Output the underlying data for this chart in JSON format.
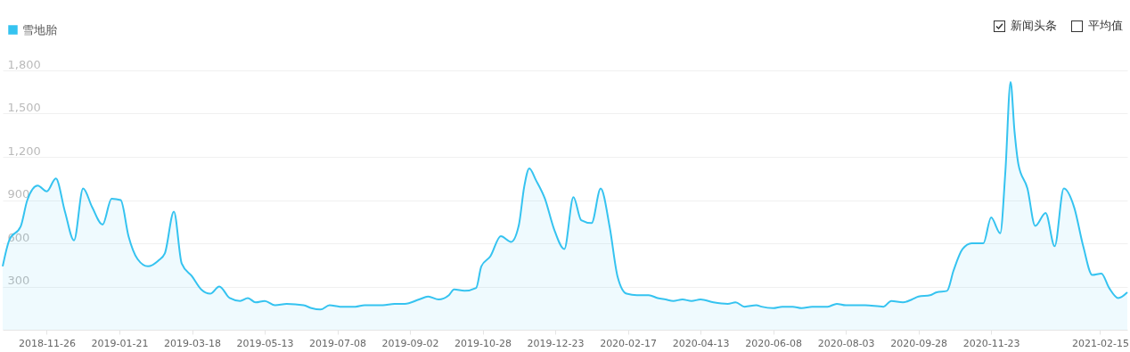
{
  "chart_data": {
    "type": "area",
    "legend": "top left",
    "grid": "y",
    "marker": "none",
    "line_style": "solid",
    "annotations": [
      "新闻头条",
      "平均值"
    ],
    "xlim": [
      "2018-10-23",
      "2021-03-08"
    ],
    "xticks": [
      "2018-11-26",
      "2019-01-21",
      "2019-03-18",
      "2019-05-13",
      "2019-07-08",
      "2019-09-02",
      "2019-10-28",
      "2019-12-23",
      "2020-02-17",
      "2020-04-13",
      "2020-06-08",
      "2020-08-03",
      "2020-09-28",
      "2020-11-23",
      "2021-02-15"
    ],
    "ylim": [
      0,
      1800
    ],
    "yticks": [
      {
        "value": 300,
        "label": "300"
      },
      {
        "value": 600,
        "label": "600"
      },
      {
        "value": 900,
        "label": "900"
      },
      {
        "value": 1200,
        "label": "1,200"
      },
      {
        "value": 1500,
        "label": "1,500"
      },
      {
        "value": 1800,
        "label": "1,800"
      }
    ],
    "series": [
      {
        "name": "雪地胎",
        "color": "#35c3f0",
        "x": [
          "2018-10-23",
          "2018-10-28",
          "2018-11-06",
          "2018-11-11",
          "2018-11-19",
          "2018-11-26",
          "2018-12-03",
          "2018-12-10",
          "2018-12-17",
          "2018-12-24",
          "2018-12-31",
          "2019-01-08",
          "2019-01-15",
          "2019-01-22",
          "2019-01-28",
          "2019-02-04",
          "2019-02-12",
          "2019-02-20",
          "2019-02-25",
          "2019-03-04",
          "2019-03-10",
          "2019-03-18",
          "2019-03-25",
          "2019-04-01",
          "2019-04-08",
          "2019-04-16",
          "2019-04-24",
          "2019-04-30",
          "2019-05-06",
          "2019-05-13",
          "2019-05-21",
          "2019-05-30",
          "2019-06-12",
          "2019-06-18",
          "2019-06-25",
          "2019-07-02",
          "2019-07-10",
          "2019-07-22",
          "2019-07-29",
          "2019-08-12",
          "2019-08-21",
          "2019-08-29",
          "2019-09-09",
          "2019-09-16",
          "2019-09-24",
          "2019-10-02",
          "2019-10-06",
          "2019-10-14",
          "2019-10-23",
          "2019-10-27",
          "2019-11-03",
          "2019-11-11",
          "2019-11-19",
          "2019-11-25",
          "2019-11-29",
          "2019-12-03",
          "2019-12-08",
          "2019-12-15",
          "2019-12-22",
          "2019-12-30",
          "2020-01-06",
          "2020-01-12",
          "2020-01-20",
          "2020-01-27",
          "2020-02-03",
          "2020-02-09",
          "2020-02-16",
          "2020-02-24",
          "2020-03-04",
          "2020-03-11",
          "2020-03-17",
          "2020-03-23",
          "2020-03-30",
          "2020-04-06",
          "2020-04-13",
          "2020-04-23",
          "2020-05-04",
          "2020-05-10",
          "2020-05-17",
          "2020-05-26",
          "2020-05-30",
          "2020-06-08",
          "2020-06-15",
          "2020-06-23",
          "2020-06-30",
          "2020-07-08",
          "2020-07-20",
          "2020-07-27",
          "2020-08-03",
          "2020-08-18",
          "2020-09-01",
          "2020-09-07",
          "2020-09-16",
          "2020-09-23",
          "2020-09-28",
          "2020-10-07",
          "2020-10-12",
          "2020-10-20",
          "2020-10-25",
          "2020-11-01",
          "2020-11-08",
          "2020-11-17",
          "2020-11-23",
          "2020-11-30",
          "2020-12-04",
          "2020-12-08",
          "2020-12-11",
          "2020-12-14",
          "2020-12-21",
          "2020-12-27",
          "2021-01-04",
          "2021-01-11",
          "2021-01-18",
          "2021-01-26",
          "2021-02-02",
          "2021-02-09",
          "2021-02-16",
          "2021-02-22",
          "2021-03-01",
          "2021-03-08"
        ],
        "values": [
          440,
          620,
          720,
          900,
          1000,
          960,
          1050,
          820,
          620,
          980,
          850,
          730,
          910,
          900,
          650,
          490,
          440,
          480,
          530,
          820,
          460,
          370,
          280,
          250,
          300,
          220,
          200,
          220,
          190,
          200,
          170,
          180,
          170,
          150,
          140,
          170,
          160,
          160,
          170,
          170,
          180,
          180,
          210,
          230,
          210,
          240,
          280,
          270,
          290,
          440,
          510,
          650,
          610,
          730,
          990,
          1120,
          1040,
          910,
          700,
          560,
          920,
          760,
          740,
          980,
          710,
          370,
          250,
          240,
          240,
          220,
          210,
          200,
          210,
          200,
          210,
          190,
          180,
          190,
          160,
          170,
          160,
          150,
          160,
          160,
          150,
          160,
          160,
          180,
          170,
          170,
          160,
          200,
          190,
          210,
          230,
          240,
          260,
          270,
          410,
          560,
          600,
          600,
          780,
          670,
          1100,
          1720,
          1380,
          1150,
          980,
          720,
          810,
          580,
          980,
          850,
          580,
          380,
          390,
          290,
          220,
          260
        ]
      }
    ]
  }
}
